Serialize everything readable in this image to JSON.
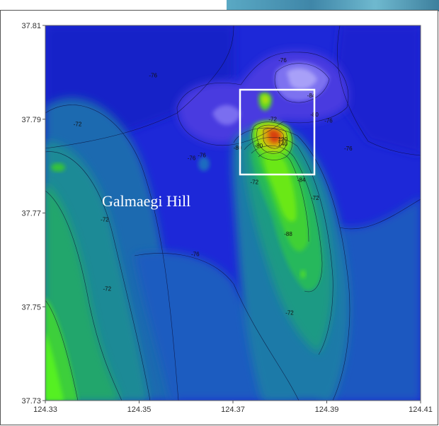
{
  "map": {
    "x_ticks": [
      "124.33",
      "124.35",
      "124.37",
      "124.39",
      "124.41"
    ],
    "y_ticks": [
      "37.81",
      "37.79",
      "37.77",
      "37.75",
      "37.73"
    ],
    "place_label": "Galmaegi Hill",
    "contour_labels": [
      {
        "text": "-72",
        "x": 124.3776,
        "y": 37.7896
      },
      {
        "text": "-76",
        "x": 124.3797,
        "y": 37.8022
      },
      {
        "text": "-84",
        "x": 124.3837,
        "y": 37.7766
      },
      {
        "text": "-84",
        "x": 124.3858,
        "y": 37.7946
      },
      {
        "text": "-80",
        "x": 124.3865,
        "y": 37.7906
      },
      {
        "text": "-76",
        "x": 124.3895,
        "y": 37.7893
      },
      {
        "text": "-76",
        "x": 124.3937,
        "y": 37.7833
      },
      {
        "text": "-72",
        "x": 124.3866,
        "y": 37.7728
      },
      {
        "text": "-72",
        "x": 124.3737,
        "y": 37.7762
      },
      {
        "text": "-88",
        "x": 124.3809,
        "y": 37.7651
      },
      {
        "text": "-72",
        "x": 124.3812,
        "y": 37.7483
      },
      {
        "text": "-72",
        "x": 124.3418,
        "y": 37.7682
      },
      {
        "text": "-72",
        "x": 124.336,
        "y": 37.7885
      },
      {
        "text": "-76",
        "x": 124.3521,
        "y": 37.7989
      },
      {
        "text": "-76",
        "x": 124.3603,
        "y": 37.7813
      },
      {
        "text": "-76",
        "x": 124.3625,
        "y": 37.7819
      },
      {
        "text": "-76",
        "x": 124.3611,
        "y": 37.7608
      },
      {
        "text": "-72",
        "x": 124.3423,
        "y": 37.7534
      },
      {
        "text": "-80",
        "x": 124.3701,
        "y": 37.7835
      },
      {
        "text": "-80",
        "x": 124.3746,
        "y": 37.7839
      },
      {
        "text": "120",
        "x": 124.3796,
        "y": 37.7853
      },
      {
        "text": "140",
        "x": 124.3796,
        "y": 37.7843
      }
    ]
  }
}
